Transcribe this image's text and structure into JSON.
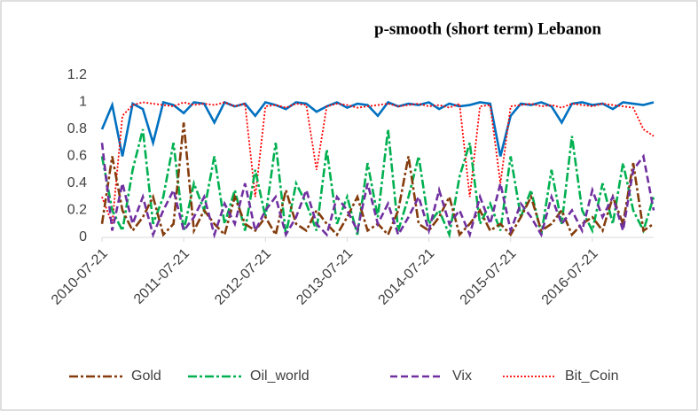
{
  "chart_data": {
    "type": "line",
    "title": "p-smooth (short term) Lebanon",
    "categories": [
      "2010-07-21",
      null,
      null,
      null,
      null,
      null,
      null,
      null,
      "2011-07-21",
      null,
      null,
      null,
      null,
      null,
      null,
      null,
      "2012-07-21",
      null,
      null,
      null,
      null,
      null,
      null,
      null,
      "2013-07-21",
      null,
      null,
      null,
      null,
      null,
      null,
      null,
      "2014-07-21",
      null,
      null,
      null,
      null,
      null,
      null,
      null,
      "2015-07-21",
      null,
      null,
      null,
      null,
      null,
      null,
      null,
      "2016-07-21",
      null,
      null,
      null,
      null,
      null,
      null
    ],
    "ylim": [
      0,
      1.2
    ],
    "yticks": [
      0,
      0.2,
      0.4,
      0.6,
      0.8,
      1,
      1.2
    ],
    "grid": false,
    "legend": "bottom",
    "series": [
      {
        "color": "#0070c0",
        "style": "solid",
        "values": [
          0.8,
          0.98,
          0.6,
          0.99,
          0.95,
          0.7,
          1,
          0.98,
          0.92,
          1,
          0.99,
          0.85,
          1,
          0.97,
          0.99,
          0.9,
          1,
          0.98,
          0.95,
          1,
          0.99,
          0.93,
          0.97,
          1,
          0.96,
          0.99,
          0.98,
          0.9,
          1,
          0.97,
          0.99,
          0.98,
          1,
          0.95,
          0.99,
          0.97,
          0.98,
          1,
          0.99,
          0.6,
          0.9,
          0.99,
          0.98,
          1,
          0.97,
          0.85,
          0.99,
          1,
          0.98,
          0.99,
          0.95,
          1,
          0.99,
          0.98,
          1
        ]
      },
      {
        "name": "Bit_Coin",
        "color": "#ff0000",
        "style": "dotted",
        "values": [
          0.3,
          0.1,
          0.9,
          0.98,
          1,
          0.99,
          0.98,
          0.97,
          1,
          0.98,
          0.99,
          0.98,
          1,
          0.97,
          0.99,
          0.3,
          0.97,
          0.98,
          0.96,
          0.99,
          0.98,
          0.5,
          0.97,
          0.99,
          0.98,
          0.96,
          0.97,
          0.98,
          0.99,
          0.97,
          0.98,
          0.99,
          0.97,
          0.98,
          0.96,
          0.99,
          0.3,
          0.97,
          0.98,
          0.4,
          0.97,
          0.98,
          0.99,
          0.97,
          0.98,
          0.96,
          0.99,
          0.98,
          0.97,
          0.99,
          0.98,
          0.97,
          0.96,
          0.8,
          0.75
        ]
      },
      {
        "name": "Oil_world",
        "color": "#00b050",
        "style": "dashdot",
        "values": [
          0.6,
          0.2,
          0.05,
          0.5,
          0.8,
          0.1,
          0.3,
          0.7,
          0.05,
          0.4,
          0.2,
          0.6,
          0.1,
          0.35,
          0.05,
          0.5,
          0.15,
          0.7,
          0.02,
          0.4,
          0.25,
          0.05,
          0.65,
          0.1,
          0.3,
          0.02,
          0.55,
          0.15,
          0.8,
          0.05,
          0.3,
          0.6,
          0.1,
          0.2,
          0.02,
          0.45,
          0.7,
          0.1,
          0.25,
          0.05,
          0.6,
          0.15,
          0.35,
          0.02,
          0.5,
          0.1,
          0.75,
          0.2,
          0.05,
          0.4,
          0.1,
          0.55,
          0.2,
          0.05,
          0.3
        ]
      },
      {
        "name": "Gold",
        "color": "#843c0c",
        "style": "dashdot",
        "values": [
          0.1,
          0.6,
          0.2,
          0.05,
          0.15,
          0.3,
          0.02,
          0.1,
          0.85,
          0.05,
          0.2,
          0.1,
          0.02,
          0.3,
          0.1,
          0.05,
          0.15,
          0.02,
          0.35,
          0.1,
          0.05,
          0.2,
          0.1,
          0.02,
          0.15,
          0.3,
          0.05,
          0.1,
          0.02,
          0.2,
          0.6,
          0.1,
          0.05,
          0.15,
          0.3,
          0.02,
          0.1,
          0.2,
          0.05,
          0.1,
          0.02,
          0.15,
          0.3,
          0.05,
          0.1,
          0.2,
          0.02,
          0.1,
          0.15,
          0.05,
          0.3,
          0.1,
          0.55,
          0.05,
          0.1
        ]
      },
      {
        "name": "Vix",
        "color": "#7030a0",
        "style": "dashed",
        "values": [
          0.7,
          0.05,
          0.4,
          0.1,
          0.3,
          0.02,
          0.2,
          0.35,
          0.05,
          0.15,
          0.3,
          0.02,
          0.25,
          0.1,
          0.4,
          0.05,
          0.2,
          0.3,
          0.02,
          0.15,
          0.35,
          0.1,
          0.02,
          0.3,
          0.2,
          0.05,
          0.4,
          0.1,
          0.25,
          0.02,
          0.15,
          0.3,
          0.05,
          0.35,
          0.1,
          0.2,
          0.02,
          0.3,
          0.1,
          0.4,
          0.05,
          0.25,
          0.15,
          0.02,
          0.3,
          0.1,
          0.2,
          0.05,
          0.35,
          0.15,
          0.3,
          0.05,
          0.5,
          0.6,
          0.2
        ]
      }
    ],
    "legend_order": [
      3,
      2,
      4,
      1
    ]
  }
}
